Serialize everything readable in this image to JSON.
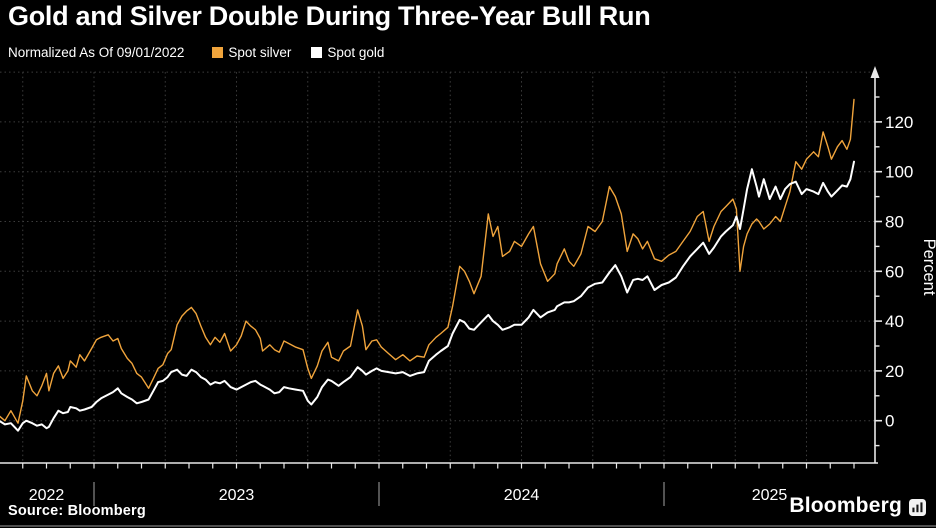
{
  "header": {
    "title": "Gold and Silver Double During Three-Year Bull Run",
    "subtitle": "Normalized As Of 09/01/2022"
  },
  "legend": [
    {
      "label": "Spot silver",
      "color": "#F0A43C"
    },
    {
      "label": "Spot gold",
      "color": "#FFFFFF"
    }
  ],
  "axes": {
    "y_label": "Percent",
    "y_tick_labels": [
      "0",
      "20",
      "40",
      "60",
      "80",
      "100",
      "120"
    ],
    "x_year_labels": [
      "2022",
      "2023",
      "2024",
      "2025"
    ]
  },
  "footer": {
    "source": "Source: Bloomberg",
    "logo_text": "Bloomberg",
    "logo_icon": "bar-chart-app-icon"
  },
  "colors": {
    "background": "#000000",
    "silver_line": "#F0A43C",
    "gold_line": "#FFFFFF",
    "gridline": "#3c3c3c",
    "axis_line": "#e8e8e8",
    "text": "#ffffff",
    "year_separator": "#8a8a8a",
    "bottom_rule": "#4f4f4f"
  },
  "chart_data": {
    "type": "line",
    "title": "Gold and Silver Double During Three-Year Bull Run",
    "subtitle": "Normalized As Of 09/01/2022",
    "ylabel": "Percent",
    "x_unit": "months since 2022-09-01",
    "xlim": [
      0,
      36.8
    ],
    "ylim": [
      -17,
      140.5
    ],
    "grid": "dotted, horizontal every 20, vertical quarterly",
    "legend_position": "top",
    "y_gridline_values": [
      0,
      20,
      40,
      60,
      80,
      100,
      120,
      140
    ],
    "y_major_tick_values": [
      0,
      20,
      40,
      60,
      80,
      100,
      120
    ],
    "y_minor_tick_values": [
      -10,
      10,
      30,
      50,
      70,
      90,
      110,
      130
    ],
    "year_boundary_months": [
      4,
      16,
      28
    ],
    "quarter_gridline_months": [
      1,
      4,
      7,
      10,
      13,
      16,
      19,
      22,
      25,
      28,
      31,
      34
    ],
    "x": [
      0,
      0.25,
      0.5,
      0.8,
      1.0,
      1.15,
      1.4,
      1.6,
      1.8,
      2.0,
      2.1,
      2.3,
      2.5,
      2.7,
      2.9,
      3.0,
      3.25,
      3.4,
      3.6,
      3.9,
      4.1,
      4.3,
      4.6,
      4.8,
      5.0,
      5.15,
      5.4,
      5.6,
      5.8,
      6.0,
      6.3,
      6.5,
      6.7,
      6.9,
      7.1,
      7.25,
      7.5,
      7.7,
      7.9,
      8.1,
      8.3,
      8.5,
      8.7,
      8.9,
      9.1,
      9.3,
      9.5,
      9.75,
      10.0,
      10.2,
      10.4,
      10.6,
      10.8,
      11.0,
      11.1,
      11.4,
      11.6,
      11.8,
      12.0,
      12.2,
      12.5,
      12.8,
      13.0,
      13.15,
      13.4,
      13.6,
      13.85,
      14.0,
      14.3,
      14.5,
      14.8,
      15.1,
      15.3,
      15.45,
      15.7,
      15.9,
      16.1,
      16.4,
      16.7,
      17.0,
      17.3,
      17.6,
      17.9,
      18.1,
      18.4,
      18.6,
      18.9,
      19.1,
      19.4,
      19.6,
      19.8,
      20.0,
      20.3,
      20.6,
      20.8,
      21.0,
      21.2,
      21.5,
      21.7,
      22.0,
      22.3,
      22.5,
      22.8,
      23.1,
      23.4,
      23.5,
      23.8,
      24.0,
      24.2,
      24.5,
      24.8,
      25.1,
      25.4,
      25.7,
      25.95,
      26.2,
      26.45,
      26.7,
      26.9,
      27.1,
      27.3,
      27.6,
      27.9,
      28.2,
      28.5,
      28.8,
      29.1,
      29.4,
      29.65,
      29.9,
      30.1,
      30.4,
      30.6,
      30.9,
      31.05,
      31.2,
      31.35,
      31.5,
      31.7,
      31.9,
      32.0,
      32.2,
      32.45,
      32.7,
      32.9,
      33.1,
      33.3,
      33.55,
      33.8,
      34.0,
      34.3,
      34.5,
      34.7,
      34.9,
      35.05,
      35.3,
      35.5,
      35.7,
      35.85,
      36.0
    ],
    "series": [
      {
        "name": "Spot silver",
        "color": "#F0A43C",
        "values": [
          2,
          0,
          4,
          -1,
          8,
          18,
          12,
          10,
          14,
          19,
          12,
          19,
          22,
          17,
          20,
          24,
          21.5,
          26.5,
          24,
          29,
          32.5,
          33.5,
          34.5,
          32,
          33,
          29,
          25,
          23,
          19,
          17.5,
          13,
          17,
          21,
          22.5,
          27,
          28.5,
          38.5,
          42,
          44,
          45.5,
          43,
          38,
          33.5,
          30.5,
          33.5,
          31.5,
          35,
          28,
          30.5,
          34,
          40,
          38,
          36.5,
          33,
          28,
          30.5,
          28.5,
          27.5,
          32,
          31,
          29.5,
          28.5,
          21,
          17,
          22,
          28,
          31.5,
          25.5,
          24,
          28,
          30,
          44.5,
          38,
          28.5,
          32,
          32.5,
          29.5,
          27,
          24.5,
          26.5,
          24,
          26,
          25.5,
          30.5,
          33.5,
          35,
          37.5,
          46,
          62,
          60,
          56,
          51,
          58,
          83,
          74,
          78,
          66,
          68,
          72,
          70,
          75,
          78,
          63,
          56,
          59,
          63,
          69,
          64,
          62,
          67,
          78,
          76,
          80,
          94,
          90,
          83,
          68,
          75,
          73,
          69,
          72,
          65,
          64,
          66.5,
          68,
          72,
          76,
          82,
          84,
          72,
          78,
          84,
          86,
          89,
          85,
          60,
          70,
          75,
          79,
          81,
          80,
          77,
          79,
          82,
          80,
          86,
          92,
          104,
          101,
          105,
          108,
          106,
          116,
          110,
          105,
          110,
          112.5,
          109,
          113,
          129
        ]
      },
      {
        "name": "Spot gold",
        "color": "#FFFFFF",
        "values": [
          0,
          -1.5,
          -1,
          -4,
          -1,
          0,
          -1,
          -2,
          -1.5,
          -3,
          -2.5,
          1,
          4,
          3,
          3.5,
          5.5,
          5,
          4,
          4.5,
          5.5,
          7.5,
          9,
          10.5,
          11.5,
          13,
          11,
          9.5,
          8.5,
          7,
          7.5,
          8.5,
          12,
          15.5,
          16,
          17.5,
          19.5,
          20.5,
          18.5,
          18,
          20.5,
          19.5,
          17.5,
          16.5,
          14.5,
          15.5,
          15,
          16,
          13.5,
          12.5,
          13.5,
          14.5,
          15.5,
          16,
          14.5,
          14,
          12.5,
          11,
          11.5,
          13.5,
          13,
          12.5,
          12,
          8,
          6.5,
          9.5,
          13.5,
          16.5,
          16,
          14,
          15.5,
          17.5,
          21.5,
          20,
          18.5,
          20,
          21,
          20,
          19.5,
          19,
          19.5,
          18,
          19,
          19.5,
          24,
          26.5,
          28,
          30,
          35,
          40.5,
          39.5,
          37,
          36.5,
          39.5,
          42.5,
          40,
          38.5,
          36.5,
          37.5,
          38.5,
          38.5,
          41.5,
          44.5,
          41.5,
          43.5,
          44.5,
          46,
          47.5,
          47.5,
          48,
          50,
          53.5,
          55,
          55.5,
          59.5,
          62.5,
          58,
          51.5,
          56.5,
          57,
          56.5,
          58,
          52.5,
          54.5,
          55.5,
          57.5,
          62,
          66,
          69,
          71.5,
          67,
          69.5,
          74,
          76,
          78.5,
          82,
          77,
          85,
          93,
          101,
          94,
          90,
          97,
          89,
          94,
          89,
          93,
          95,
          96,
          91,
          93,
          92,
          91,
          95.5,
          92,
          90,
          92.5,
          94.5,
          94,
          97,
          104
        ]
      }
    ]
  }
}
